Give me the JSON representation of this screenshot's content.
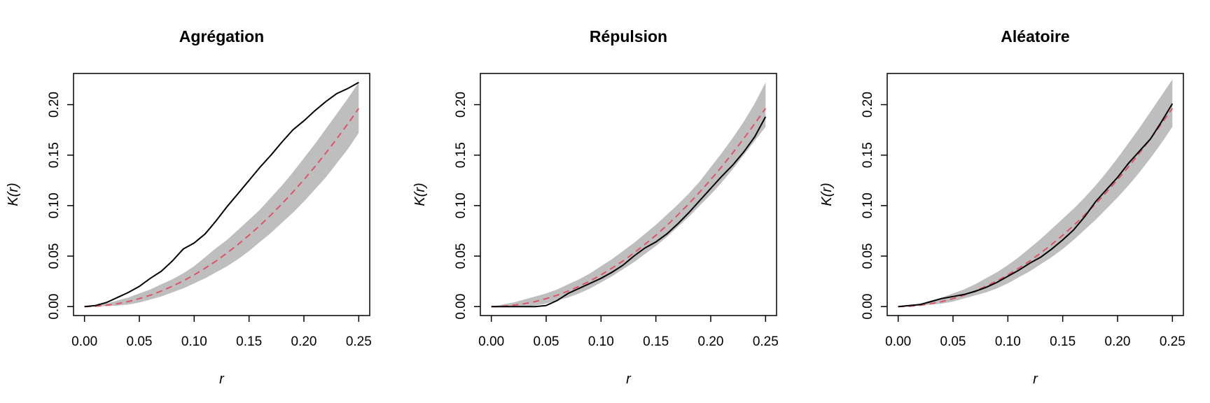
{
  "chart_data": [
    {
      "type": "line",
      "title": "Agrégation",
      "xlabel": "r",
      "ylabel": "K(r)",
      "xlim": [
        0,
        0.25
      ],
      "ylim": [
        0,
        0.22
      ],
      "xticks": [
        "0.00",
        "0.05",
        "0.10",
        "0.15",
        "0.20",
        "0.25"
      ],
      "yticks": [
        "0.00",
        "0.05",
        "0.10",
        "0.15",
        "0.20"
      ],
      "x": [
        0,
        0.01,
        0.02,
        0.03,
        0.04,
        0.05,
        0.06,
        0.07,
        0.08,
        0.09,
        0.1,
        0.11,
        0.12,
        0.13,
        0.14,
        0.15,
        0.16,
        0.17,
        0.18,
        0.19,
        0.2,
        0.21,
        0.22,
        0.23,
        0.24,
        0.25
      ],
      "series": [
        {
          "role": "observed",
          "color": "#000000",
          "values": [
            0,
            0.001,
            0.004,
            0.009,
            0.014,
            0.02,
            0.028,
            0.035,
            0.045,
            0.057,
            0.063,
            0.072,
            0.085,
            0.099,
            0.112,
            0.125,
            0.138,
            0.15,
            0.163,
            0.175,
            0.184,
            0.194,
            0.203,
            0.211,
            0.216,
            0.222
          ]
        },
        {
          "role": "theoretical",
          "color": "#df536b",
          "dashed": true,
          "values": [
            0,
            0.0003,
            0.0013,
            0.0028,
            0.005,
            0.0079,
            0.0113,
            0.0154,
            0.0201,
            0.0254,
            0.0314,
            0.038,
            0.0452,
            0.0531,
            0.0616,
            0.0707,
            0.0804,
            0.0908,
            0.1018,
            0.1134,
            0.1257,
            0.1385,
            0.1521,
            0.1662,
            0.181,
            0.1963
          ]
        },
        {
          "role": "envelope-upper",
          "color": "#bebebe",
          "values": [
            0,
            0.001,
            0.003,
            0.006,
            0.009,
            0.013,
            0.017,
            0.022,
            0.027,
            0.033,
            0.04,
            0.049,
            0.058,
            0.066,
            0.076,
            0.086,
            0.096,
            0.108,
            0.12,
            0.133,
            0.147,
            0.161,
            0.176,
            0.191,
            0.206,
            0.222
          ]
        },
        {
          "role": "envelope-lower",
          "color": "#bebebe",
          "values": [
            0,
            0,
            0.0005,
            0.001,
            0.002,
            0.004,
            0.007,
            0.01,
            0.014,
            0.018,
            0.023,
            0.028,
            0.034,
            0.04,
            0.047,
            0.055,
            0.064,
            0.073,
            0.083,
            0.093,
            0.104,
            0.116,
            0.128,
            0.142,
            0.156,
            0.172
          ]
        }
      ]
    },
    {
      "type": "line",
      "title": "Répulsion",
      "xlabel": "r",
      "ylabel": "K(r)",
      "xlim": [
        0,
        0.25
      ],
      "ylim": [
        0,
        0.22
      ],
      "xticks": [
        "0.00",
        "0.05",
        "0.10",
        "0.15",
        "0.20",
        "0.25"
      ],
      "yticks": [
        "0.00",
        "0.05",
        "0.10",
        "0.15",
        "0.20"
      ],
      "x": [
        0,
        0.01,
        0.02,
        0.03,
        0.04,
        0.05,
        0.06,
        0.07,
        0.08,
        0.09,
        0.1,
        0.11,
        0.12,
        0.13,
        0.14,
        0.15,
        0.16,
        0.17,
        0.18,
        0.19,
        0.2,
        0.21,
        0.22,
        0.23,
        0.24,
        0.25
      ],
      "series": [
        {
          "role": "observed",
          "color": "#000000",
          "values": [
            0,
            0,
            0,
            0,
            0,
            0.001,
            0.006,
            0.013,
            0.018,
            0.023,
            0.028,
            0.034,
            0.041,
            0.05,
            0.058,
            0.064,
            0.072,
            0.082,
            0.093,
            0.105,
            0.117,
            0.129,
            0.14,
            0.153,
            0.168,
            0.188
          ]
        },
        {
          "role": "theoretical",
          "color": "#df536b",
          "dashed": true,
          "values": [
            0,
            0.0003,
            0.0013,
            0.0028,
            0.005,
            0.0079,
            0.0113,
            0.0154,
            0.0201,
            0.0254,
            0.0314,
            0.038,
            0.0452,
            0.0531,
            0.0616,
            0.0707,
            0.0804,
            0.0908,
            0.1018,
            0.1134,
            0.1257,
            0.1385,
            0.1521,
            0.1662,
            0.181,
            0.1963
          ]
        },
        {
          "role": "envelope-upper",
          "color": "#bebebe",
          "values": [
            0,
            0.002,
            0.004,
            0.007,
            0.01,
            0.013,
            0.017,
            0.022,
            0.027,
            0.033,
            0.04,
            0.047,
            0.055,
            0.063,
            0.072,
            0.081,
            0.091,
            0.101,
            0.112,
            0.124,
            0.138,
            0.152,
            0.167,
            0.183,
            0.201,
            0.222
          ]
        },
        {
          "role": "envelope-lower",
          "color": "#bebebe",
          "values": [
            0,
            0,
            0,
            0,
            0.001,
            0.003,
            0.006,
            0.009,
            0.013,
            0.018,
            0.024,
            0.03,
            0.037,
            0.044,
            0.052,
            0.06,
            0.069,
            0.079,
            0.089,
            0.1,
            0.111,
            0.123,
            0.136,
            0.15,
            0.164,
            0.178
          ]
        }
      ]
    },
    {
      "type": "line",
      "title": "Aléatoire",
      "xlabel": "r",
      "ylabel": "K(r)",
      "xlim": [
        0,
        0.25
      ],
      "ylim": [
        0,
        0.22
      ],
      "xticks": [
        "0.00",
        "0.05",
        "0.10",
        "0.15",
        "0.20",
        "0.25"
      ],
      "yticks": [
        "0.00",
        "0.05",
        "0.10",
        "0.15",
        "0.20"
      ],
      "x": [
        0,
        0.01,
        0.02,
        0.03,
        0.04,
        0.05,
        0.06,
        0.07,
        0.08,
        0.09,
        0.1,
        0.11,
        0.12,
        0.13,
        0.14,
        0.15,
        0.16,
        0.17,
        0.18,
        0.19,
        0.2,
        0.21,
        0.22,
        0.23,
        0.24,
        0.25
      ],
      "series": [
        {
          "role": "observed",
          "color": "#000000",
          "values": [
            0,
            0.001,
            0.002,
            0.005,
            0.008,
            0.01,
            0.012,
            0.015,
            0.019,
            0.024,
            0.03,
            0.036,
            0.043,
            0.049,
            0.057,
            0.066,
            0.076,
            0.089,
            0.104,
            0.116,
            0.128,
            0.142,
            0.154,
            0.166,
            0.183,
            0.201
          ]
        },
        {
          "role": "theoretical",
          "color": "#df536b",
          "dashed": true,
          "values": [
            0,
            0.0003,
            0.0013,
            0.0028,
            0.005,
            0.0079,
            0.0113,
            0.0154,
            0.0201,
            0.0254,
            0.0314,
            0.038,
            0.0452,
            0.0531,
            0.0616,
            0.0707,
            0.0804,
            0.0908,
            0.1018,
            0.1134,
            0.1257,
            0.1385,
            0.1521,
            0.1662,
            0.181,
            0.1963
          ]
        },
        {
          "role": "envelope-upper",
          "color": "#bebebe",
          "values": [
            0,
            0.001,
            0.003,
            0.006,
            0.009,
            0.013,
            0.017,
            0.022,
            0.028,
            0.034,
            0.041,
            0.049,
            0.058,
            0.067,
            0.077,
            0.087,
            0.097,
            0.108,
            0.12,
            0.133,
            0.147,
            0.162,
            0.177,
            0.193,
            0.209,
            0.225
          ]
        },
        {
          "role": "envelope-lower",
          "color": "#bebebe",
          "values": [
            0,
            0,
            0.001,
            0.002,
            0.003,
            0.005,
            0.008,
            0.011,
            0.014,
            0.018,
            0.023,
            0.029,
            0.035,
            0.042,
            0.049,
            0.057,
            0.066,
            0.076,
            0.086,
            0.097,
            0.108,
            0.12,
            0.133,
            0.147,
            0.162,
            0.178
          ]
        }
      ]
    }
  ]
}
